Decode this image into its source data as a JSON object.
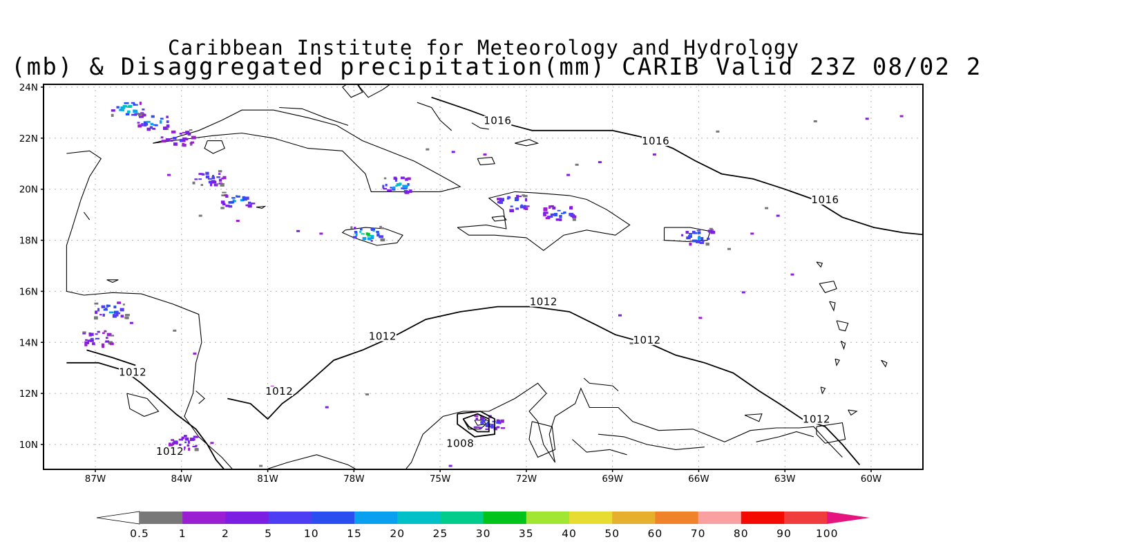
{
  "title_line1": "Caribbean Institute for Meteorology and Hydrology",
  "title_line2": "(mb) & Disaggregated precipitation(mm) CARIB Valid 23Z 08/02 2",
  "map": {
    "lat_range": [
      9,
      24
    ],
    "lon_range": [
      -88,
      -58
    ],
    "lat_ticks": [
      {
        "v": 24,
        "label": "24N"
      },
      {
        "v": 22,
        "label": "22N"
      },
      {
        "v": 20,
        "label": "20N"
      },
      {
        "v": 18,
        "label": "18N"
      },
      {
        "v": 16,
        "label": "16N"
      },
      {
        "v": 14,
        "label": "14N"
      },
      {
        "v": 12,
        "label": "12N"
      },
      {
        "v": 10,
        "label": "10N"
      }
    ],
    "lon_ticks": [
      {
        "v": -87,
        "label": "87W"
      },
      {
        "v": -84,
        "label": "84W"
      },
      {
        "v": -81,
        "label": "81W"
      },
      {
        "v": -78,
        "label": "78W"
      },
      {
        "v": -75,
        "label": "75W"
      },
      {
        "v": -72,
        "label": "72W"
      },
      {
        "v": -69,
        "label": "69W"
      },
      {
        "v": -66,
        "label": "66W"
      },
      {
        "v": -63,
        "label": "63W"
      },
      {
        "v": -60,
        "label": "60W"
      }
    ],
    "grid": true,
    "isobar_labels": [
      {
        "text": "1016",
        "lon": -73.0,
        "lat": 22.55
      },
      {
        "text": "1016",
        "lon": -67.5,
        "lat": 21.75
      },
      {
        "text": "1016",
        "lon": -61.6,
        "lat": 19.45
      },
      {
        "text": "1012",
        "lon": -71.4,
        "lat": 15.45
      },
      {
        "text": "1012",
        "lon": -77.0,
        "lat": 14.1
      },
      {
        "text": "1012",
        "lon": -67.8,
        "lat": 13.95
      },
      {
        "text": "1012",
        "lon": -85.7,
        "lat": 12.7
      },
      {
        "text": "1012",
        "lon": -80.6,
        "lat": 11.95
      },
      {
        "text": "1012",
        "lon": -84.4,
        "lat": 9.6
      },
      {
        "text": "1012",
        "lon": -61.9,
        "lat": 10.85
      },
      {
        "text": "1008",
        "lon": -74.3,
        "lat": 9.9
      }
    ],
    "precip_areas": [
      {
        "name": "cuba-west",
        "lon": -85.9,
        "lat": 23.2,
        "mm": 30
      },
      {
        "name": "cuba-west-2",
        "lon": -85.0,
        "lat": 22.7,
        "mm": 25
      },
      {
        "name": "isle-of-youth",
        "lon": -84.2,
        "lat": 22.05,
        "mm": 5
      },
      {
        "name": "cayman-area",
        "lon": -82.1,
        "lat": 19.6,
        "mm": 20
      },
      {
        "name": "cayman-area-2",
        "lon": -83.1,
        "lat": 20.5,
        "mm": 10
      },
      {
        "name": "cuba-east",
        "lon": -76.5,
        "lat": 20.2,
        "mm": 25
      },
      {
        "name": "jamaica",
        "lon": -77.6,
        "lat": 18.3,
        "mm": 35
      },
      {
        "name": "haiti",
        "lon": -72.5,
        "lat": 19.5,
        "mm": 20
      },
      {
        "name": "dominican-rep",
        "lon": -70.9,
        "lat": 19.1,
        "mm": 15
      },
      {
        "name": "puerto-rico",
        "lon": -66.1,
        "lat": 18.2,
        "mm": 20
      },
      {
        "name": "honduras",
        "lon": -86.5,
        "lat": 15.3,
        "mm": 20
      },
      {
        "name": "nicaragua",
        "lon": -87.0,
        "lat": 14.2,
        "mm": 5
      },
      {
        "name": "colombia",
        "lon": -73.4,
        "lat": 10.9,
        "mm": 10
      },
      {
        "name": "costa-rica",
        "lon": -83.9,
        "lat": 10.1,
        "mm": 5
      }
    ]
  },
  "colorbar": {
    "labels": [
      "0.5",
      "1",
      "2",
      "5",
      "10",
      "15",
      "20",
      "25",
      "30",
      "35",
      "40",
      "50",
      "60",
      "70",
      "80",
      "90",
      "100"
    ],
    "colors": [
      "#ffffff",
      "#787878",
      "#9b1fd2",
      "#7d1fe2",
      "#4e3ef3",
      "#2b4ef0",
      "#0aa0f0",
      "#00c0c8",
      "#00cc8c",
      "#00c41c",
      "#a0e632",
      "#e6dc32",
      "#e6af2d",
      "#f0822a",
      "#faa0a0",
      "#f50a00",
      "#f03c3c",
      "#e6147e"
    ]
  }
}
